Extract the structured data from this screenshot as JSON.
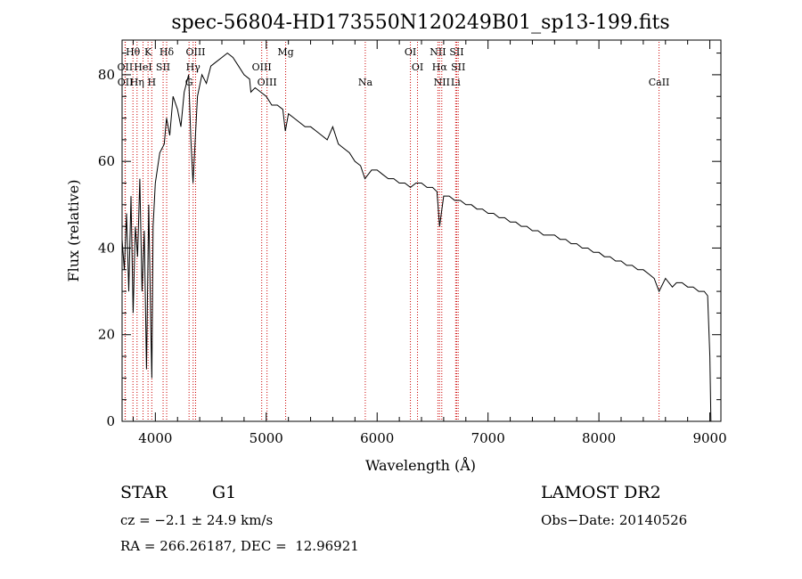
{
  "chart_data": {
    "type": "line",
    "title": "spec-56804-HD173550N120249B01_sp13-199.fits",
    "xlabel": "Wavelength (Å)",
    "ylabel": "Flux (relative)",
    "xlim": [
      3700,
      9100
    ],
    "ylim": [
      0,
      88
    ],
    "x_ticks": [
      4000,
      5000,
      6000,
      7000,
      8000,
      9000
    ],
    "y_ticks": [
      0,
      20,
      40,
      60,
      80
    ],
    "grid": false,
    "legend": "none",
    "line_color": "#000000",
    "marker_color": "#cc0000",
    "spectrum": {
      "x": [
        3700,
        3720,
        3740,
        3760,
        3780,
        3800,
        3820,
        3840,
        3860,
        3880,
        3900,
        3920,
        3940,
        3960,
        3968,
        3980,
        4000,
        4040,
        4080,
        4101,
        4130,
        4160,
        4200,
        4230,
        4260,
        4300,
        4320,
        4340,
        4380,
        4420,
        4460,
        4500,
        4550,
        4600,
        4650,
        4700,
        4750,
        4800,
        4850,
        4861,
        4900,
        4950,
        5000,
        5050,
        5100,
        5150,
        5172,
        5200,
        5250,
        5300,
        5350,
        5400,
        5450,
        5500,
        5550,
        5600,
        5650,
        5700,
        5750,
        5800,
        5850,
        5890,
        5950,
        6000,
        6050,
        6100,
        6150,
        6200,
        6250,
        6300,
        6350,
        6400,
        6450,
        6500,
        6540,
        6563,
        6600,
        6650,
        6700,
        6750,
        6800,
        6850,
        6900,
        6950,
        7000,
        7050,
        7100,
        7150,
        7200,
        7250,
        7300,
        7350,
        7400,
        7450,
        7500,
        7550,
        7600,
        7650,
        7700,
        7750,
        7800,
        7850,
        7900,
        7950,
        8000,
        8050,
        8100,
        8150,
        8200,
        8250,
        8300,
        8350,
        8400,
        8450,
        8498,
        8542,
        8600,
        8662,
        8700,
        8750,
        8800,
        8850,
        8900,
        8950,
        8980,
        9000,
        9010
      ],
      "y": [
        42,
        35,
        48,
        30,
        52,
        25,
        45,
        38,
        56,
        30,
        44,
        12,
        50,
        20,
        10,
        45,
        55,
        62,
        64,
        70,
        66,
        75,
        72,
        68,
        76,
        80,
        65,
        55,
        75,
        80,
        78,
        82,
        83,
        84,
        85,
        84,
        82,
        80,
        79,
        76,
        77,
        76,
        75,
        73,
        73,
        72,
        67,
        71,
        70,
        69,
        68,
        68,
        67,
        66,
        65,
        68,
        64,
        63,
        62,
        60,
        59,
        56,
        58,
        58,
        57,
        56,
        56,
        55,
        55,
        54,
        55,
        55,
        54,
        54,
        53,
        45,
        52,
        52,
        51,
        51,
        50,
        50,
        49,
        49,
        48,
        48,
        47,
        47,
        46,
        46,
        45,
        45,
        44,
        44,
        43,
        43,
        43,
        42,
        42,
        41,
        41,
        40,
        40,
        39,
        39,
        38,
        38,
        37,
        37,
        36,
        36,
        35,
        35,
        34,
        33,
        30,
        33,
        31,
        32,
        32,
        31,
        31,
        30,
        30,
        29,
        15,
        0
      ]
    },
    "lines": [
      {
        "label": "Hθ",
        "x": 3798,
        "row": 0
      },
      {
        "label": "K",
        "x": 3934,
        "row": 0
      },
      {
        "label": "Hδ",
        "x": 4102,
        "row": 0
      },
      {
        "label": "OIII",
        "x": 4363,
        "row": 0
      },
      {
        "label": "Mg",
        "x": 5175,
        "row": 0
      },
      {
        "label": "OI",
        "x": 6300,
        "row": 0
      },
      {
        "label": "NII",
        "x": 6548,
        "row": 0
      },
      {
        "label": "SII",
        "x": 6717,
        "row": 0
      },
      {
        "label": "OII",
        "x": 3727,
        "row": 1
      },
      {
        "label": "HeI",
        "x": 3889,
        "row": 1
      },
      {
        "label": "SII",
        "x": 4070,
        "row": 1
      },
      {
        "label": "Hγ",
        "x": 4341,
        "row": 1
      },
      {
        "label": "OIII",
        "x": 4959,
        "row": 1
      },
      {
        "label": "OI",
        "x": 6364,
        "row": 1
      },
      {
        "label": "Hα",
        "x": 6563,
        "row": 1
      },
      {
        "label": "SII",
        "x": 6731,
        "row": 1
      },
      {
        "label": "OII",
        "x": 3729,
        "row": 2
      },
      {
        "label": "Hη",
        "x": 3835,
        "row": 2
      },
      {
        "label": "H",
        "x": 3968,
        "row": 2
      },
      {
        "label": "G",
        "x": 4304,
        "row": 2
      },
      {
        "label": "OIII",
        "x": 5007,
        "row": 2
      },
      {
        "label": "Na",
        "x": 5893,
        "row": 2
      },
      {
        "label": "NII",
        "x": 6583,
        "row": 2
      },
      {
        "label": "Li",
        "x": 6708,
        "row": 2
      },
      {
        "label": "CaII",
        "x": 8542,
        "row": 2
      }
    ]
  },
  "info": {
    "class": "STAR",
    "subclass": "G1",
    "survey": "LAMOST DR2",
    "cz": "cz = −2.1 ± 24.9 km/s",
    "obs_date": "Obs−Date: 20140526",
    "coords": "RA = 266.26187, DEC =  12.96921"
  }
}
